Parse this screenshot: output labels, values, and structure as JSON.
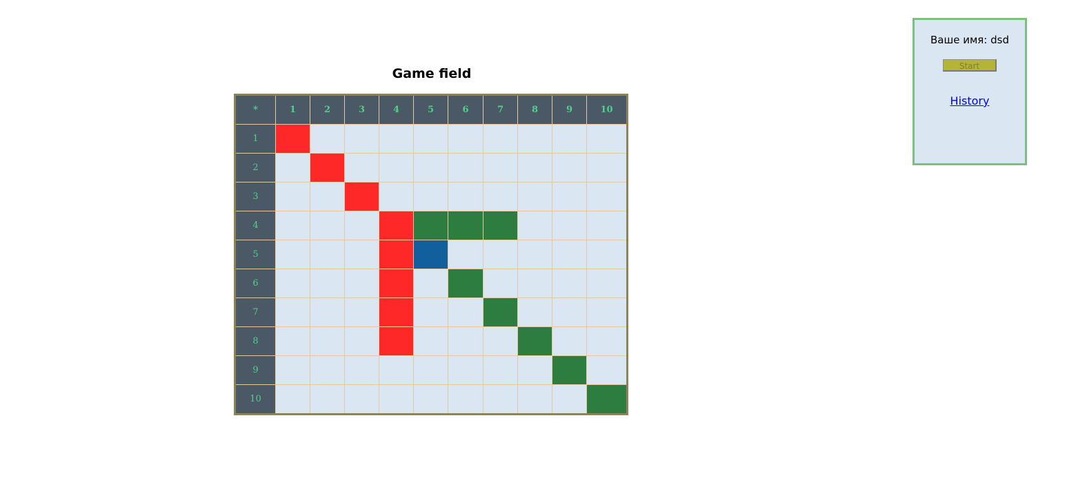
{
  "game": {
    "title": "Game field",
    "corner_label": "*",
    "columns": [
      "1",
      "2",
      "3",
      "4",
      "5",
      "6",
      "7",
      "8",
      "9",
      "10"
    ],
    "rows": [
      "1",
      "2",
      "3",
      "4",
      "5",
      "6",
      "7",
      "8",
      "9",
      "10"
    ],
    "colors": {
      "empty": "#dae6f2",
      "red": "#ff2828",
      "green": "#2e7d40",
      "blue": "#125f9e",
      "header_bg": "#4b5866",
      "header_text": "#4fd18a"
    },
    "grid": [
      [
        "red",
        "",
        "",
        "",
        "",
        "",
        "",
        "",
        "",
        ""
      ],
      [
        "",
        "red",
        "",
        "",
        "",
        "",
        "",
        "",
        "",
        ""
      ],
      [
        "",
        "",
        "red",
        "",
        "",
        "",
        "",
        "",
        "",
        ""
      ],
      [
        "",
        "",
        "",
        "red",
        "green",
        "green",
        "green",
        "",
        "",
        ""
      ],
      [
        "",
        "",
        "",
        "red",
        "blue",
        "",
        "",
        "",
        "",
        ""
      ],
      [
        "",
        "",
        "",
        "red",
        "",
        "green",
        "",
        "",
        "",
        ""
      ],
      [
        "",
        "",
        "",
        "red",
        "",
        "",
        "green",
        "",
        "",
        ""
      ],
      [
        "",
        "",
        "",
        "red",
        "",
        "",
        "",
        "green",
        "",
        ""
      ],
      [
        "",
        "",
        "",
        "",
        "",
        "",
        "",
        "",
        "green",
        ""
      ],
      [
        "",
        "",
        "",
        "",
        "",
        "",
        "",
        "",
        "",
        "green"
      ]
    ]
  },
  "panel": {
    "player_label": "Ваше имя: dsd",
    "start_button": "Start",
    "history_link": "History"
  }
}
